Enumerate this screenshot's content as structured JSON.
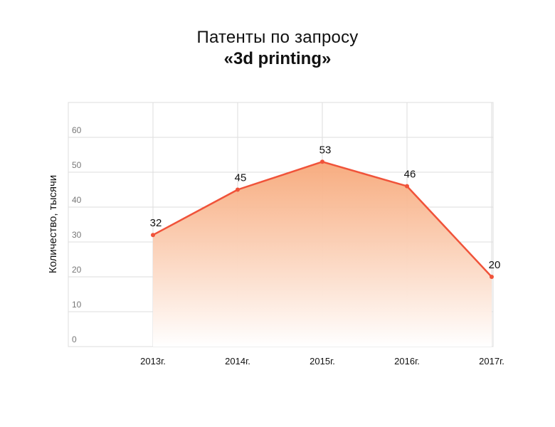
{
  "title_line1": "Патенты по запросу",
  "title_line2": "«3d printing»",
  "chart_data": {
    "type": "area",
    "title": "Патенты по запросу «3d printing»",
    "xlabel": "",
    "ylabel": "Количество, тысячи",
    "categories": [
      "2013г.",
      "2014г.",
      "2015г.",
      "2016г.",
      "2017г."
    ],
    "series": [
      {
        "values": [
          32,
          45,
          53,
          46,
          20
        ],
        "data_labels": [
          "32",
          "45",
          "53",
          "46",
          "20"
        ]
      }
    ],
    "y_ticks": [
      "0",
      "10",
      "20",
      "30",
      "40",
      "50",
      "60"
    ],
    "ylim": [
      0,
      70
    ],
    "grid": true,
    "legend": "none",
    "colors": {
      "line": "#f0533a",
      "fill_top": "#f7a879",
      "fill_bottom": "#ffffff",
      "grid": "#dddddd"
    }
  }
}
